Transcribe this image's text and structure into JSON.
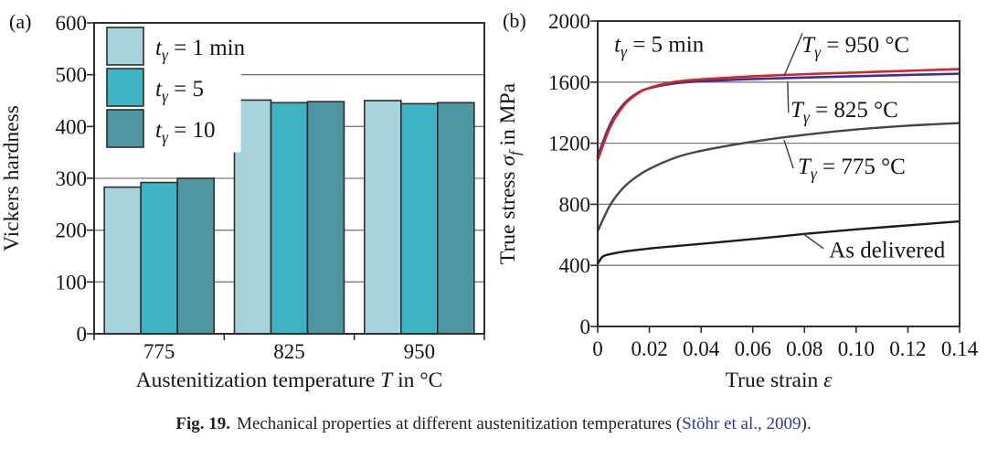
{
  "figure": {
    "panel_a": "(a)",
    "panel_b": "(b)"
  },
  "caption": {
    "label": "Fig. 19.",
    "body": "Mechanical properties at different austenitization temperatures (",
    "link": "Stöhr et al., 2009",
    "suffix": ")."
  },
  "colors": {
    "frame": "#2e2e2e",
    "grid": "#7a7a7a",
    "text": "#141414",
    "leader": "#3a3a3a",
    "link": "#2b3a9c",
    "background": "#ffffff"
  },
  "chart_data": [
    {
      "type": "bar",
      "panel": "(a)",
      "title": "",
      "xlabel": "Austenitization temperature T in °C",
      "xlabel_parts": [
        {
          "t": "Austenitization temperature "
        },
        {
          "t": "T",
          "i": 1
        },
        {
          "t": " in °C"
        }
      ],
      "ylabel": "Vickers hardness",
      "ylabel_parts": [
        {
          "t": "Vickers hardness"
        }
      ],
      "categories": [
        "775",
        "825",
        "950"
      ],
      "ylim": [
        0,
        600
      ],
      "yticks": [
        0,
        100,
        200,
        300,
        400,
        500,
        600
      ],
      "grid": "horizontal",
      "legend_position": "top-left",
      "series": [
        {
          "name": "tγ = 1 min",
          "label_parts": [
            {
              "t": "t",
              "i": 1
            },
            {
              "t": "γ",
              "i": 1,
              "sub": 1
            },
            {
              "t": " = 1 min"
            }
          ],
          "color": "#a6d3dc",
          "values": [
            283,
            451,
            450
          ]
        },
        {
          "name": "tγ = 5",
          "label_parts": [
            {
              "t": "t",
              "i": 1
            },
            {
              "t": "γ",
              "i": 1,
              "sub": 1
            },
            {
              "t": " = 5"
            }
          ],
          "color": "#3eb3c4",
          "values": [
            292,
            446,
            444
          ]
        },
        {
          "name": "tγ = 10",
          "label_parts": [
            {
              "t": "t",
              "i": 1
            },
            {
              "t": "γ",
              "i": 1,
              "sub": 1
            },
            {
              "t": " = 10"
            }
          ],
          "color": "#4e96a1",
          "values": [
            300,
            448,
            446
          ]
        }
      ]
    },
    {
      "type": "line",
      "panel": "(b)",
      "title": "",
      "xlabel": "True strain ε",
      "xlabel_parts": [
        {
          "t": "True strain "
        },
        {
          "t": "ε",
          "i": 1
        }
      ],
      "ylabel": "True stress σf in MPa",
      "ylabel_parts": [
        {
          "t": "True stress "
        },
        {
          "t": "σ",
          "i": 1
        },
        {
          "t": "f",
          "i": 1,
          "sub": 1
        },
        {
          "t": " in MPa"
        }
      ],
      "xlim": [
        0,
        0.14
      ],
      "ylim": [
        0,
        2000
      ],
      "yticks": [
        0,
        400,
        800,
        1200,
        1600,
        2000
      ],
      "xtick_values": [
        0,
        0.02,
        0.04,
        0.06,
        0.08,
        0.1,
        0.12,
        0.14
      ],
      "xtick_labels": [
        "0",
        "0.02",
        "0.04",
        "0.06",
        "0.08",
        "0.10",
        "0.12",
        "0.14"
      ],
      "grid": "horizontal",
      "note": {
        "label": "tγ = 5 min",
        "parts": [
          {
            "t": "t",
            "i": 1
          },
          {
            "t": "γ",
            "i": 1,
            "sub": 1
          },
          {
            "t": " = 5 min"
          }
        ],
        "at": {
          "x": 0.0064,
          "y": 1800
        }
      },
      "series": [
        {
          "id": "T950",
          "name": "Tγ = 950 °C",
          "color": "#d8261e",
          "width": 2.6,
          "x": [
            0,
            0.005,
            0.01,
            0.015,
            0.02,
            0.03,
            0.04,
            0.06,
            0.08,
            0.1,
            0.12,
            0.14
          ],
          "y": [
            1090,
            1310,
            1445,
            1520,
            1562,
            1602,
            1618,
            1638,
            1652,
            1663,
            1674,
            1685
          ]
        },
        {
          "id": "T825",
          "name": "Tγ = 825 °C",
          "color": "#3a2fa0",
          "width": 2.6,
          "x": [
            0,
            0.005,
            0.01,
            0.015,
            0.02,
            0.03,
            0.04,
            0.06,
            0.08,
            0.1,
            0.12,
            0.14
          ],
          "y": [
            1115,
            1330,
            1455,
            1525,
            1560,
            1592,
            1605,
            1620,
            1630,
            1639,
            1647,
            1655
          ]
        },
        {
          "id": "T775",
          "name": "Tγ = 775 °C",
          "color": "#45473e",
          "width": 2.4,
          "x": [
            0,
            0.005,
            0.01,
            0.015,
            0.02,
            0.03,
            0.04,
            0.06,
            0.08,
            0.1,
            0.12,
            0.14
          ],
          "y": [
            625,
            800,
            910,
            980,
            1032,
            1105,
            1150,
            1210,
            1255,
            1290,
            1315,
            1332
          ]
        },
        {
          "id": "as-delivered",
          "name": "As delivered",
          "color": "#1b1b1b",
          "width": 2.4,
          "x": [
            0,
            0.002,
            0.005,
            0.01,
            0.02,
            0.03,
            0.04,
            0.06,
            0.08,
            0.1,
            0.12,
            0.14
          ],
          "y": [
            410,
            458,
            474,
            490,
            510,
            526,
            541,
            572,
            606,
            636,
            662,
            688
          ]
        }
      ],
      "annotations": [
        {
          "id": "T950",
          "label": "Tγ = 950 °C",
          "parts": [
            {
              "t": "T",
              "i": 1
            },
            {
              "t": "γ",
              "i": 1,
              "sub": 1
            },
            {
              "t": " = 950 °C"
            }
          ],
          "text_at": {
            "x": 0.0789,
            "y": 1795
          },
          "leader": [
            {
              "x": 0.0792,
              "y": 1920
            },
            {
              "x": 0.0721,
              "y": 1640
            }
          ]
        },
        {
          "id": "T825",
          "label": "Tγ = 825 °C",
          "parts": [
            {
              "t": "T",
              "i": 1
            },
            {
              "t": "γ",
              "i": 1,
              "sub": 1
            },
            {
              "t": " = 825 °C"
            }
          ],
          "text_at": {
            "x": 0.0746,
            "y": 1370
          },
          "leader": [
            {
              "x": 0.0735,
              "y": 1600
            },
            {
              "x": 0.0738,
              "y": 1400
            }
          ]
        },
        {
          "id": "T775",
          "label": "Tγ = 775 °C",
          "parts": [
            {
              "t": "T",
              "i": 1
            },
            {
              "t": "γ",
              "i": 1,
              "sub": 1
            },
            {
              "t": " = 775 °C"
            }
          ],
          "text_at": {
            "x": 0.0774,
            "y": 1000
          },
          "leader": [
            {
              "x": 0.0721,
              "y": 1220
            },
            {
              "x": 0.0757,
              "y": 1035
            }
          ]
        },
        {
          "id": "as-delivered",
          "label": "As delivered",
          "parts": [
            {
              "t": "As delivered"
            }
          ],
          "text_at": {
            "x": 0.0895,
            "y": 452
          },
          "leader": [
            {
              "x": 0.0792,
              "y": 610
            },
            {
              "x": 0.0874,
              "y": 510
            }
          ]
        }
      ]
    }
  ]
}
